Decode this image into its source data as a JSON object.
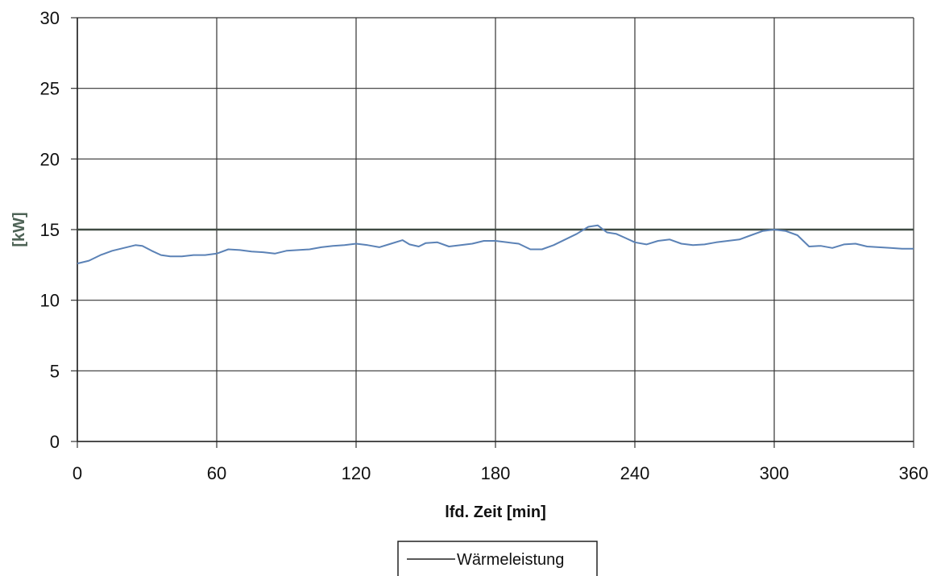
{
  "chart_data": {
    "type": "line",
    "xlabel": "lfd. Zeit [min]",
    "ylabel": "[kW]",
    "xlim": [
      0,
      360
    ],
    "ylim": [
      0,
      30
    ],
    "x_ticks": [
      0,
      60,
      120,
      180,
      240,
      300,
      360
    ],
    "y_ticks": [
      0,
      5,
      10,
      15,
      20,
      25,
      30
    ],
    "grid": true,
    "legend": {
      "placement": "bottom-center",
      "entries": [
        "Wärmeleistung"
      ]
    },
    "reference_line": {
      "y": 15,
      "color": "#3f4a42"
    },
    "series": [
      {
        "name": "Wärmeleistung",
        "color": "#5b82b6",
        "x": [
          0,
          5,
          10,
          15,
          20,
          25,
          28,
          32,
          36,
          40,
          45,
          50,
          55,
          60,
          65,
          70,
          75,
          80,
          85,
          90,
          95,
          100,
          105,
          110,
          115,
          120,
          125,
          130,
          135,
          140,
          143,
          147,
          150,
          155,
          160,
          165,
          170,
          175,
          180,
          185,
          190,
          195,
          200,
          205,
          210,
          215,
          220,
          224,
          228,
          232,
          236,
          240,
          245,
          250,
          255,
          260,
          265,
          270,
          275,
          280,
          285,
          290,
          295,
          300,
          305,
          310,
          315,
          320,
          325,
          330,
          335,
          340,
          345,
          350,
          355,
          360
        ],
        "values": [
          12.6,
          12.8,
          13.2,
          13.5,
          13.7,
          13.9,
          13.85,
          13.5,
          13.2,
          13.1,
          13.1,
          13.2,
          13.2,
          13.3,
          13.6,
          13.55,
          13.45,
          13.4,
          13.3,
          13.5,
          13.55,
          13.6,
          13.75,
          13.85,
          13.9,
          14.0,
          13.9,
          13.75,
          14.0,
          14.25,
          13.95,
          13.8,
          14.05,
          14.1,
          13.8,
          13.9,
          14.0,
          14.2,
          14.2,
          14.1,
          14.0,
          13.6,
          13.6,
          13.9,
          14.3,
          14.7,
          15.2,
          15.3,
          14.8,
          14.7,
          14.4,
          14.1,
          13.95,
          14.2,
          14.3,
          14.0,
          13.9,
          13.95,
          14.1,
          14.2,
          14.3,
          14.6,
          14.9,
          15.0,
          14.9,
          14.6,
          13.8,
          13.85,
          13.7,
          13.95,
          14.0,
          13.8,
          13.75,
          13.7,
          13.65,
          13.65
        ]
      }
    ]
  }
}
